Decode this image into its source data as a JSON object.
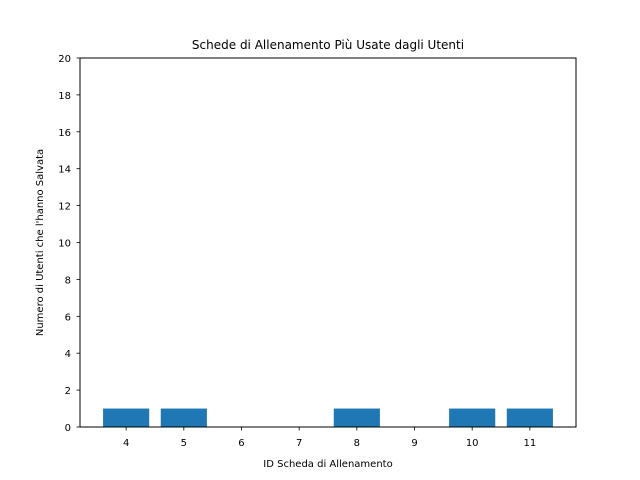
{
  "chart_data": {
    "type": "bar",
    "title": "Schede di Allenamento Più Usate dagli Utenti",
    "xlabel": "ID Scheda di Allenamento",
    "ylabel": "Numero di Utenti che l'hanno Salvata",
    "categories": [
      4,
      5,
      8,
      10,
      11
    ],
    "values": [
      1,
      1,
      1,
      1,
      1
    ],
    "x_ticks": [
      4,
      5,
      6,
      7,
      8,
      9,
      10,
      11
    ],
    "xlim": [
      3.2,
      11.8
    ],
    "ylim": [
      0,
      20
    ],
    "y_ticks": [
      0,
      2,
      4,
      6,
      8,
      10,
      12,
      14,
      16,
      18,
      20
    ],
    "bar_color": "#1f77b4",
    "grid": false
  }
}
